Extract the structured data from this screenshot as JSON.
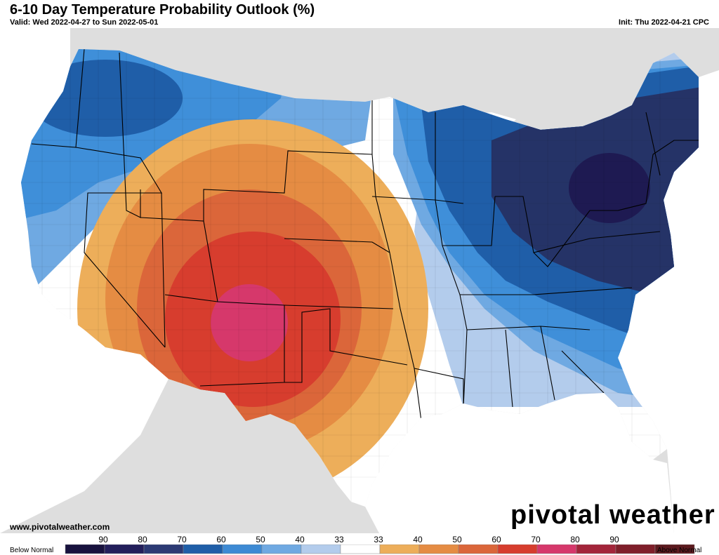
{
  "header": {
    "title": "6-10 Day Temperature Probability Outlook (%)",
    "valid": "Valid: Wed 2022-04-27 to Sun 2022-05-01",
    "init": "Init: Thu 2022-04-21 CPC"
  },
  "footer": {
    "url": "www.pivotalweather.com",
    "brand": "pivotal weather"
  },
  "map": {
    "background_color": "#dedede",
    "water_color": "#ffffff",
    "categories": [
      {
        "name": "below-60",
        "color": "#1f5ea8"
      },
      {
        "name": "below-50",
        "color": "#3f8fd9"
      },
      {
        "name": "below-40",
        "color": "#6fa9e2"
      },
      {
        "name": "below-33",
        "color": "#b3ccec"
      },
      {
        "name": "below-70",
        "color": "#253367"
      },
      {
        "name": "below-80",
        "color": "#1e1a52"
      },
      {
        "name": "near-normal",
        "color": "#ffffff"
      },
      {
        "name": "above-33",
        "color": "#edae5a"
      },
      {
        "name": "above-40",
        "color": "#e58c43"
      },
      {
        "name": "above-50",
        "color": "#db663a"
      },
      {
        "name": "above-60",
        "color": "#d73d2e"
      },
      {
        "name": "above-70",
        "color": "#d6386b"
      }
    ]
  },
  "legend": {
    "below_label": "Below Normal",
    "above_label": "Above Normal",
    "ticks": [
      "90",
      "80",
      "70",
      "60",
      "50",
      "40",
      "33",
      "33",
      "40",
      "50",
      "60",
      "70",
      "80",
      "90"
    ],
    "colors": [
      "#18123e",
      "#231f5b",
      "#2c3a74",
      "#1f5ea8",
      "#3d8ad4",
      "#6fa9e2",
      "#b3ccec",
      "#ffffff",
      "#edae5a",
      "#e58c43",
      "#db663a",
      "#d73d2e",
      "#d6386b",
      "#a3253a",
      "#7f1f2a",
      "#5c1a1f"
    ]
  }
}
